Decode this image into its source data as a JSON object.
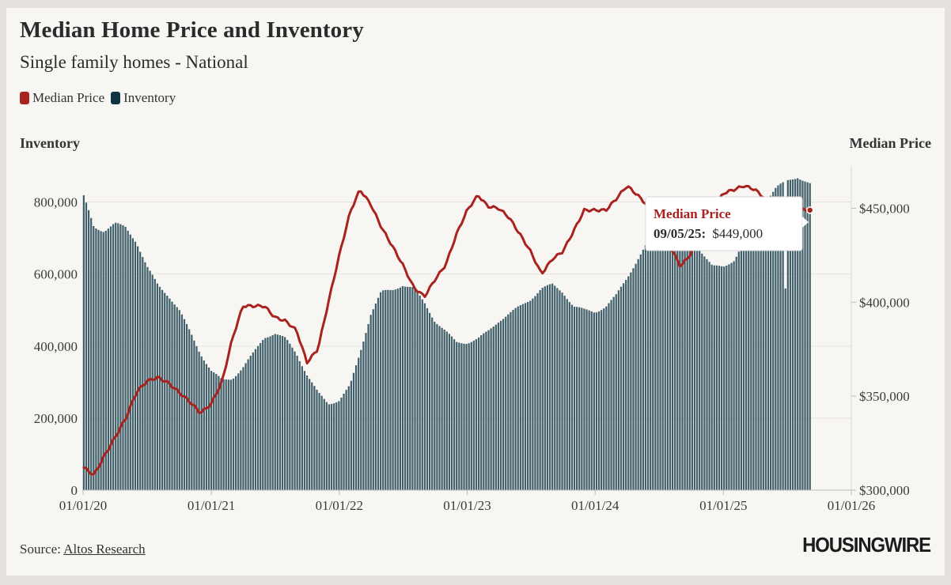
{
  "header": {
    "title": "Median Home Price and Inventory",
    "subtitle": "Single family homes - National"
  },
  "legend": [
    {
      "label": "Median Price",
      "color": "#a9221e"
    },
    {
      "label": "Inventory",
      "color": "#0f3342"
    }
  ],
  "axis_titles": {
    "left": "Inventory",
    "right": "Median Price"
  },
  "tooltip": {
    "title": "Median Price",
    "date": "09/05/25:",
    "value": "$449,000"
  },
  "footer": {
    "source_prefix": "Source:",
    "source_link": "Altos Research",
    "logo": "HOUSINGWIRE"
  },
  "colors": {
    "price_line": "#a9221e",
    "inventory_bars": "#3f5f6b",
    "inventory_bar_stroke": "#2b4a57",
    "tooltip_title": "#a9221e"
  },
  "chart_data": {
    "type": "bar+line",
    "x_range": [
      "2020-01-01",
      "2026-01-01"
    ],
    "x_ticks": [
      "01/01/20",
      "01/01/21",
      "01/01/22",
      "01/01/23",
      "01/01/24",
      "01/01/25",
      "01/01/26"
    ],
    "left_axis": {
      "title": "Inventory",
      "ticks": [
        "0",
        "200,000",
        "400,000",
        "600,000",
        "800,000"
      ],
      "range": [
        0,
        900000
      ]
    },
    "right_axis": {
      "title": "Median Price",
      "ticks": [
        "$300,000",
        "$350,000",
        "$400,000",
        "$450,000"
      ],
      "range": [
        300000,
        472500
      ]
    },
    "series": [
      {
        "name": "Inventory",
        "kind": "bar",
        "points": [
          [
            "2020-01-03",
            815000
          ],
          [
            "2020-02-01",
            730000
          ],
          [
            "2020-03-01",
            720000
          ],
          [
            "2020-04-01",
            740000
          ],
          [
            "2020-05-01",
            730000
          ],
          [
            "2020-06-01",
            690000
          ],
          [
            "2020-07-01",
            620000
          ],
          [
            "2020-08-01",
            570000
          ],
          [
            "2020-09-01",
            540000
          ],
          [
            "2020-10-01",
            500000
          ],
          [
            "2020-11-01",
            440000
          ],
          [
            "2020-12-01",
            380000
          ],
          [
            "2021-01-01",
            330000
          ],
          [
            "2021-02-01",
            305000
          ],
          [
            "2021-03-01",
            310000
          ],
          [
            "2021-04-01",
            340000
          ],
          [
            "2021-05-01",
            380000
          ],
          [
            "2021-06-01",
            425000
          ],
          [
            "2021-07-01",
            435000
          ],
          [
            "2021-08-01",
            420000
          ],
          [
            "2021-09-01",
            380000
          ],
          [
            "2021-10-01",
            320000
          ],
          [
            "2021-11-01",
            270000
          ],
          [
            "2021-12-01",
            240000
          ],
          [
            "2022-01-01",
            250000
          ],
          [
            "2022-02-01",
            290000
          ],
          [
            "2022-03-01",
            380000
          ],
          [
            "2022-04-01",
            490000
          ],
          [
            "2022-05-01",
            550000
          ],
          [
            "2022-06-01",
            555000
          ],
          [
            "2022-07-01",
            570000
          ],
          [
            "2022-08-01",
            560000
          ],
          [
            "2022-09-01",
            520000
          ],
          [
            "2022-10-01",
            470000
          ],
          [
            "2022-11-01",
            440000
          ],
          [
            "2022-12-01",
            410000
          ],
          [
            "2023-01-01",
            410000
          ],
          [
            "2023-02-01",
            420000
          ],
          [
            "2023-03-01",
            440000
          ],
          [
            "2023-04-01",
            470000
          ],
          [
            "2023-05-01",
            490000
          ],
          [
            "2023-06-01",
            510000
          ],
          [
            "2023-07-01",
            530000
          ],
          [
            "2023-08-01",
            560000
          ],
          [
            "2023-09-01",
            570000
          ],
          [
            "2023-10-01",
            550000
          ],
          [
            "2023-11-01",
            510000
          ],
          [
            "2023-12-01",
            500000
          ],
          [
            "2024-01-01",
            495000
          ],
          [
            "2024-02-01",
            510000
          ],
          [
            "2024-03-01",
            540000
          ],
          [
            "2024-04-01",
            590000
          ],
          [
            "2024-05-01",
            640000
          ],
          [
            "2024-06-01",
            690000
          ],
          [
            "2024-07-01",
            730000
          ],
          [
            "2024-08-01",
            745000
          ],
          [
            "2024-09-01",
            730000
          ],
          [
            "2024-10-01",
            700000
          ],
          [
            "2024-11-01",
            660000
          ],
          [
            "2024-12-01",
            620000
          ],
          [
            "2025-01-01",
            620000
          ],
          [
            "2025-02-01",
            640000
          ],
          [
            "2025-03-01",
            690000
          ],
          [
            "2025-04-01",
            750000
          ],
          [
            "2025-05-01",
            800000
          ],
          [
            "2025-06-01",
            840000
          ],
          [
            "2025-06-25",
            560000
          ],
          [
            "2025-07-05",
            860000
          ],
          [
            "2025-08-01",
            870000
          ],
          [
            "2025-09-05",
            850000
          ]
        ]
      },
      {
        "name": "Median Price",
        "kind": "line",
        "points": [
          [
            "2020-01-03",
            312000
          ],
          [
            "2020-02-01",
            308000
          ],
          [
            "2020-03-01",
            318000
          ],
          [
            "2020-04-01",
            328000
          ],
          [
            "2020-05-01",
            338000
          ],
          [
            "2020-06-01",
            352000
          ],
          [
            "2020-07-01",
            358000
          ],
          [
            "2020-08-01",
            360000
          ],
          [
            "2020-09-01",
            357000
          ],
          [
            "2020-10-01",
            352000
          ],
          [
            "2020-11-01",
            347000
          ],
          [
            "2020-12-01",
            341000
          ],
          [
            "2021-01-01",
            346000
          ],
          [
            "2021-02-01",
            358000
          ],
          [
            "2021-03-01",
            380000
          ],
          [
            "2021-04-01",
            398000
          ],
          [
            "2021-05-01",
            398000
          ],
          [
            "2021-06-01",
            398000
          ],
          [
            "2021-07-01",
            392000
          ],
          [
            "2021-08-01",
            390000
          ],
          [
            "2021-09-01",
            385000
          ],
          [
            "2021-10-01",
            368000
          ],
          [
            "2021-11-01",
            375000
          ],
          [
            "2021-12-01",
            400000
          ],
          [
            "2022-01-01",
            425000
          ],
          [
            "2022-02-01",
            448000
          ],
          [
            "2022-03-01",
            460000
          ],
          [
            "2022-04-01",
            452000
          ],
          [
            "2022-05-01",
            440000
          ],
          [
            "2022-06-01",
            430000
          ],
          [
            "2022-07-01",
            420000
          ],
          [
            "2022-08-01",
            408000
          ],
          [
            "2022-09-01",
            403000
          ],
          [
            "2022-10-01",
            412000
          ],
          [
            "2022-11-01",
            420000
          ],
          [
            "2022-12-01",
            436000
          ],
          [
            "2023-01-01",
            449000
          ],
          [
            "2023-02-01",
            457000
          ],
          [
            "2023-03-01",
            451000
          ],
          [
            "2023-04-01",
            450000
          ],
          [
            "2023-05-01",
            445000
          ],
          [
            "2023-06-01",
            436000
          ],
          [
            "2023-07-01",
            427000
          ],
          [
            "2023-08-01",
            415000
          ],
          [
            "2023-09-01",
            423000
          ],
          [
            "2023-10-01",
            427000
          ],
          [
            "2023-11-01",
            438000
          ],
          [
            "2023-12-01",
            449000
          ],
          [
            "2024-01-01",
            449000
          ],
          [
            "2024-02-01",
            449000
          ],
          [
            "2024-03-01",
            455000
          ],
          [
            "2024-04-01",
            462000
          ],
          [
            "2024-05-01",
            457000
          ],
          [
            "2024-06-01",
            451000
          ],
          [
            "2024-07-01",
            440000
          ],
          [
            "2024-08-01",
            430000
          ],
          [
            "2024-09-01",
            419000
          ],
          [
            "2024-10-01",
            426000
          ],
          [
            "2024-11-01",
            438000
          ],
          [
            "2024-12-01",
            449000
          ],
          [
            "2025-01-01",
            458000
          ],
          [
            "2025-02-01",
            460000
          ],
          [
            "2025-03-01",
            462000
          ],
          [
            "2025-04-01",
            460000
          ],
          [
            "2025-05-01",
            455000
          ],
          [
            "2025-06-01",
            452000
          ],
          [
            "2025-07-01",
            450000
          ],
          [
            "2025-09-05",
            449000
          ]
        ]
      }
    ],
    "grid": "horizontal"
  }
}
